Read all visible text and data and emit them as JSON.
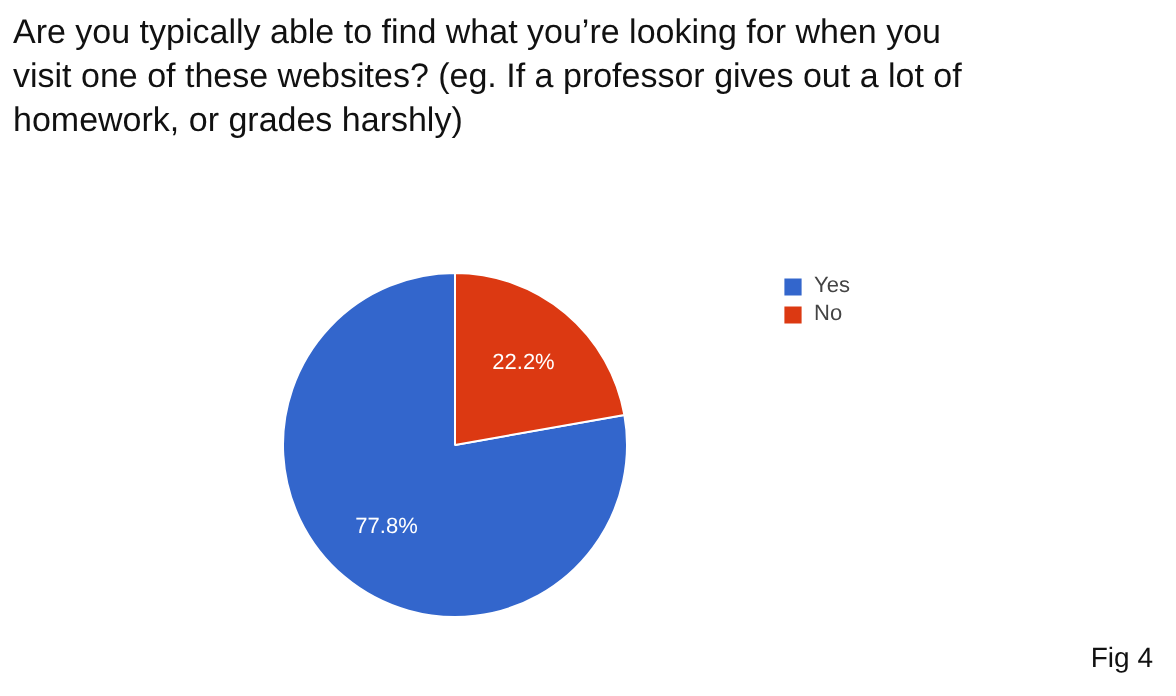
{
  "chart_data": {
    "type": "pie",
    "title": "Are you typically able to find what you’re looking for when you visit one of these websites? (eg. If a professor gives out a lot of homework, or grades harshly)",
    "categories": [
      "Yes",
      "No"
    ],
    "values": [
      77.8,
      22.2
    ],
    "colors": [
      "#3366cc",
      "#dc3912"
    ],
    "value_labels": [
      "77.8%",
      "22.2%"
    ],
    "legend": "right",
    "annotations": [
      "Fig 4"
    ]
  }
}
